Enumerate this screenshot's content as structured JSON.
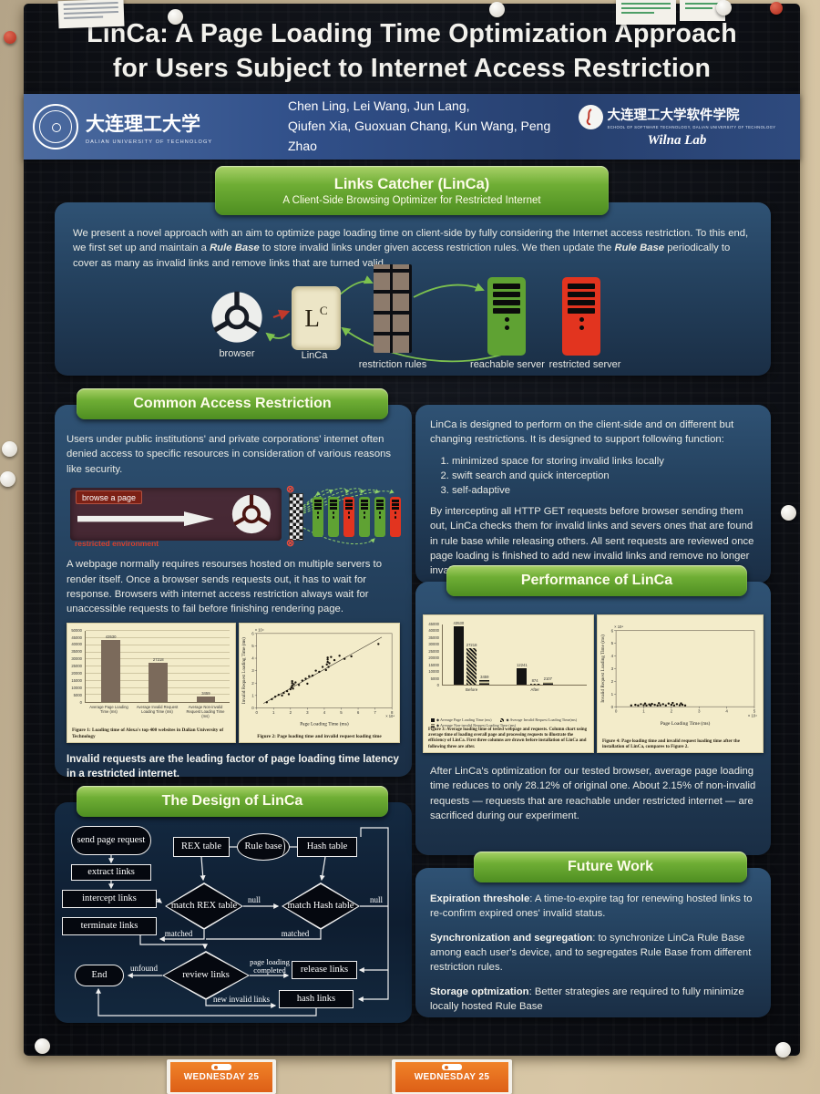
{
  "poster": {
    "title": [
      "LinCa: A Page Loading Time Optimization Approach",
      "for Users Subject to Internet Access Restriction"
    ],
    "header": {
      "left_logo_cn": "大连理工大学",
      "left_logo_en": "DALIAN  UNIVERSITY  OF  TECHNOLOGY",
      "authors": [
        "Chen Ling, Lei Wang, Jun Lang,",
        "Qiufen Xia, Guoxuan Chang, Kun Wang, Peng Zhao"
      ],
      "right_logo_cn": "大连理工大学软件学院",
      "right_logo_en": "SCHOOL OF SOFTWARE TECHNOLOGY, DALIAN UNIVERSITY OF TECHNOLOGY",
      "lab_name": "Wilna Lab"
    },
    "linca": {
      "title": "Links Catcher (LinCa)",
      "subtitle": "A Client-Side Browsing Optimizer for Restricted Internet",
      "abstract": [
        "We present a novel approach with an aim to optimize page loading time on client-side by fully considering the Internet access restriction. To this end, we first set up and maintain a ",
        "Rule Base",
        " to store invalid links under given access restriction rules. We then update the ",
        "Rule Base",
        " periodically to cover as many as invalid links and remove links that are turned valid."
      ],
      "diagram": {
        "browser": "browser",
        "linca": "LinCa",
        "card_main": "L",
        "card_sup": "C",
        "rules": "restriction rules",
        "reachable": "reachable server",
        "restricted": "restricted server"
      }
    },
    "common": {
      "title": "Common Access Restriction",
      "para1": "Users under public institutions' and private corporations' internet often denied access to specific resources in consideration of various reasons like security.",
      "diagram": {
        "browse": "browse a page",
        "env": "restricted environment",
        "block_mark": "⊗"
      },
      "para2": "A webpage normally requires resourses hosted on multiple servers to render itself. Once a browser sends requests out, it has to wait for response. Browsers with internet access restriction always wait for unaccessible requests to fail before finishing rendering page.",
      "conclusion": "Invalid requests are the leading factor of page loading time latency in a restricted internet."
    },
    "design": {
      "title": "The Design of LinCa",
      "flow": {
        "send": "send page request",
        "extract": "extract links",
        "intercept": "intercept links",
        "terminate": "terminate links",
        "rex": "REX table",
        "rule": "Rule base",
        "hash": "Hash table",
        "match_rex": "match REX table",
        "match_hash": "match Hash table",
        "review": "review links",
        "end": "End",
        "release": "release links",
        "hash_links": "hash links",
        "null1": "null",
        "null2": "null",
        "matched1": "matched",
        "matched2": "matched",
        "unfound": "unfound",
        "page_loading": "page loading completed",
        "new_invalid": "new invalid links"
      }
    },
    "right_top": {
      "para1": "LinCa is designed to perform on the client-side and on different but changing restrictions. It is designed to support following function:",
      "items": [
        "minimized space for storing invalid links locally",
        "swift search and quick interception",
        "self-adaptive"
      ],
      "para2": "By intercepting all HTTP GET requests before browser sending them out, LinCa checks them for invalid links and severs ones that are found in rule base while releasing others. All sent requests are reviewed once page loading is finished to add new invalid links and remove no longer invalid ones."
    },
    "performance": {
      "title": "Performance of LinCa",
      "result": "After LinCa's optimization for our tested browser, average page loading time reduces to only 28.12% of original one. About 2.15% of non-invalid requests — requests that are reachable under restricted internet — are sacrificed during our experiment."
    },
    "future": {
      "title": "Future Work",
      "items": [
        {
          "head": "Expiration threshole",
          "body": ": A time-to-expire tag for renewing hosted links to re-confirm expired ones' invalid status."
        },
        {
          "head": "Synchronization and segregation",
          "body": ": to synchronize LinCa Rule Base among each user's device, and to segregates Rule Base from different restriction rules."
        },
        {
          "head": "Storage optmization",
          "body": ": Better strategies are required to fully minimize locally hosted Rule Base"
        }
      ]
    }
  },
  "environment": {
    "tag_label": "WEDNESDAY 25"
  },
  "colors": {
    "green_header": "#5e9a28",
    "panel_blue": "#24415e",
    "band_blue": "#31508a",
    "server_green": "#5fa233",
    "server_red": "#e2341f",
    "figure_cream": "#f3ecca",
    "tag_orange": "#e8701f"
  },
  "chart_data": [
    {
      "id": "fig1",
      "type": "bar",
      "categories": [
        "Average Page Loading Time (ms)",
        "Average Invalid Request Loading Time (ms)",
        "Average Non-invalid Request Loading Time (ms)"
      ],
      "values": [
        43530,
        27218,
        3459
      ],
      "bar_labels": [
        "43530",
        "27218",
        "3459"
      ],
      "ylim": [
        0,
        50000
      ],
      "yticks": [
        0,
        5000,
        10000,
        15000,
        20000,
        25000,
        30000,
        35000,
        40000,
        45000,
        50000
      ],
      "grid": true,
      "caption": "Figure 1: Loading time of Alexa's top 400 websites in Dalian University of Technology"
    },
    {
      "id": "fig2",
      "type": "scatter",
      "xlabel": "Page Loading Time (ms)",
      "ylabel": "Invalid Request Loading Time (ms)",
      "x_scale": "× 10⁴",
      "y_scale": "× 10⁴",
      "xlim": [
        0,
        8
      ],
      "ylim": [
        0,
        6
      ],
      "xticks": [
        0,
        1,
        2,
        3,
        4,
        5,
        6,
        7,
        8
      ],
      "yticks": [
        0,
        1,
        2,
        3,
        4,
        5,
        6
      ],
      "trend_line": {
        "x1": 0.4,
        "y1": 0.35,
        "x2": 7.4,
        "y2": 5.7
      },
      "points": [
        [
          0.6,
          0.45
        ],
        [
          0.9,
          0.7
        ],
        [
          1.1,
          0.9
        ],
        [
          1.3,
          1.05
        ],
        [
          1.5,
          1.0
        ],
        [
          1.6,
          1.2
        ],
        [
          1.8,
          1.35
        ],
        [
          1.9,
          1.1
        ],
        [
          2.0,
          1.5
        ],
        [
          2.05,
          1.65
        ],
        [
          2.1,
          1.8
        ],
        [
          2.1,
          2.0
        ],
        [
          2.1,
          2.15
        ],
        [
          2.15,
          1.55
        ],
        [
          2.2,
          1.9
        ],
        [
          2.3,
          2.05
        ],
        [
          2.5,
          1.85
        ],
        [
          2.7,
          2.2
        ],
        [
          2.9,
          2.35
        ],
        [
          3.0,
          1.95
        ],
        [
          3.1,
          2.55
        ],
        [
          3.3,
          2.6
        ],
        [
          3.5,
          3.0
        ],
        [
          3.7,
          2.9
        ],
        [
          3.9,
          3.3
        ],
        [
          4.1,
          3.05
        ],
        [
          4.15,
          3.5
        ],
        [
          4.2,
          3.7
        ],
        [
          4.2,
          3.9
        ],
        [
          4.2,
          4.05
        ],
        [
          4.25,
          3.3
        ],
        [
          4.3,
          3.6
        ],
        [
          4.4,
          4.1
        ],
        [
          4.6,
          3.85
        ],
        [
          4.9,
          4.2
        ],
        [
          5.2,
          3.95
        ],
        [
          5.6,
          4.15
        ],
        [
          7.2,
          5.15
        ]
      ],
      "caption": "Figure 2: Page loading time and invalid request loading time"
    },
    {
      "id": "fig3",
      "type": "bar",
      "categories": [
        "Before",
        "After"
      ],
      "series": [
        {
          "name": "Average Page Loading Time (ms)",
          "values": [
            43530,
            12241
          ],
          "labels": [
            "43530",
            "12241"
          ]
        },
        {
          "name": "Average Invalid Request Loading Time(ms)",
          "values": [
            27218,
            874
          ],
          "labels": [
            "27218",
            "874"
          ]
        },
        {
          "name": "Average Non-invalid Request Loading Time (ms)",
          "values": [
            3459,
            2107
          ],
          "labels": [
            "3459",
            "2107"
          ]
        }
      ],
      "ylim": [
        0,
        45000
      ],
      "yticks": [
        0,
        5000,
        10000,
        15000,
        20000,
        25000,
        30000,
        35000,
        40000,
        45000
      ],
      "caption": "Figure 3: Average loading time of tested webpage and requests. Column chart using average time of loading overall page and processing requests to illustrate the efficiency of LinCa. First three columns are drawn before installation of LinCa and following three are after."
    },
    {
      "id": "fig4",
      "type": "scatter",
      "xlabel": "Page Loading Time (ms)",
      "ylabel": "Invalid Request Loading Time (ms)",
      "x_scale": "× 10⁴",
      "y_scale": "× 10⁴",
      "xlim": [
        0,
        5
      ],
      "ylim": [
        0,
        6
      ],
      "xticks": [
        0,
        1,
        2,
        3,
        4,
        5
      ],
      "yticks": [
        0,
        1,
        2,
        3,
        4,
        5,
        6
      ],
      "points": [
        [
          0.55,
          0.1
        ],
        [
          0.7,
          0.15
        ],
        [
          0.8,
          0.1
        ],
        [
          0.9,
          0.2
        ],
        [
          1.0,
          0.12
        ],
        [
          1.05,
          0.25
        ],
        [
          1.1,
          0.1
        ],
        [
          1.2,
          0.18
        ],
        [
          1.25,
          0.1
        ],
        [
          1.3,
          0.22
        ],
        [
          1.4,
          0.15
        ],
        [
          1.5,
          0.1
        ],
        [
          1.55,
          0.28
        ],
        [
          1.6,
          0.12
        ],
        [
          1.7,
          0.2
        ],
        [
          1.8,
          0.1
        ],
        [
          1.9,
          0.25
        ],
        [
          2.0,
          0.15
        ],
        [
          2.05,
          0.3
        ],
        [
          2.1,
          0.1
        ],
        [
          2.2,
          0.2
        ],
        [
          2.3,
          0.12
        ],
        [
          2.35,
          0.26
        ],
        [
          2.4,
          0.15
        ],
        [
          2.5,
          0.1
        ]
      ],
      "caption": "Figure 4: Page loading time and invalid request loading time after the installation of LinCa, compares to Figure 2."
    }
  ]
}
